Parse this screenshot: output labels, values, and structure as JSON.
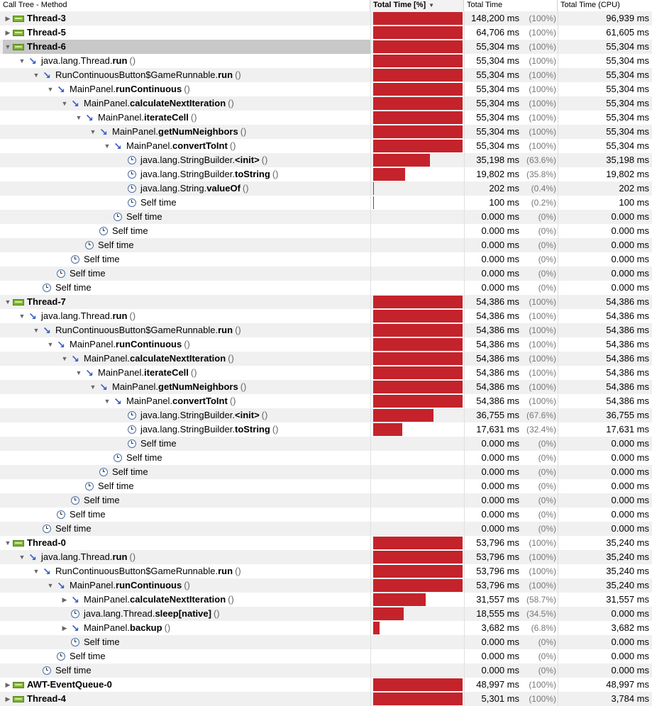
{
  "header": {
    "col_tree": "Call Tree - Method",
    "col_pct": "Total Time [%]",
    "col_time": "Total Time",
    "col_cpu": "Total Time (CPU)"
  },
  "colors": {
    "bar": "#c4232b",
    "thread_icon": "#7fb436",
    "method_icon": "#3a5cc4"
  },
  "rows": [
    {
      "depth": 0,
      "type": "thread",
      "toggle": "collapsed",
      "pre": "",
      "bold": "Thread-3",
      "params": "",
      "time": "148,200 ms",
      "pct_label": "(100%)",
      "pct": 100,
      "cpu": "96,939 ms"
    },
    {
      "depth": 0,
      "type": "thread",
      "toggle": "collapsed",
      "pre": "",
      "bold": "Thread-5",
      "params": "",
      "time": "64,706 ms",
      "pct_label": "(100%)",
      "pct": 100,
      "cpu": "61,605 ms"
    },
    {
      "depth": 0,
      "type": "thread",
      "toggle": "expanded",
      "pre": "",
      "bold": "Thread-6",
      "params": "",
      "time": "55,304 ms",
      "pct_label": "(100%)",
      "pct": 100,
      "cpu": "55,304 ms",
      "selected": true
    },
    {
      "depth": 1,
      "type": "method",
      "toggle": "expanded",
      "pre": "java.lang.Thread.",
      "bold": "run",
      "params": "()",
      "time": "55,304 ms",
      "pct_label": "(100%)",
      "pct": 100,
      "cpu": "55,304 ms"
    },
    {
      "depth": 2,
      "type": "method",
      "toggle": "expanded",
      "pre": "RunContinuousButton$GameRunnable.",
      "bold": "run",
      "params": "()",
      "time": "55,304 ms",
      "pct_label": "(100%)",
      "pct": 100,
      "cpu": "55,304 ms"
    },
    {
      "depth": 3,
      "type": "method",
      "toggle": "expanded",
      "pre": "MainPanel.",
      "bold": "runContinuous",
      "params": "()",
      "time": "55,304 ms",
      "pct_label": "(100%)",
      "pct": 100,
      "cpu": "55,304 ms"
    },
    {
      "depth": 4,
      "type": "method",
      "toggle": "expanded",
      "pre": "MainPanel.",
      "bold": "calculateNextIteration",
      "params": "()",
      "time": "55,304 ms",
      "pct_label": "(100%)",
      "pct": 100,
      "cpu": "55,304 ms"
    },
    {
      "depth": 5,
      "type": "method",
      "toggle": "expanded",
      "pre": "MainPanel.",
      "bold": "iterateCell",
      "params": "()",
      "time": "55,304 ms",
      "pct_label": "(100%)",
      "pct": 100,
      "cpu": "55,304 ms"
    },
    {
      "depth": 6,
      "type": "method",
      "toggle": "expanded",
      "pre": "MainPanel.",
      "bold": "getNumNeighbors",
      "params": "()",
      "time": "55,304 ms",
      "pct_label": "(100%)",
      "pct": 100,
      "cpu": "55,304 ms"
    },
    {
      "depth": 7,
      "type": "method",
      "toggle": "expanded",
      "pre": "MainPanel.",
      "bold": "convertToInt",
      "params": "()",
      "time": "55,304 ms",
      "pct_label": "(100%)",
      "pct": 100,
      "cpu": "55,304 ms"
    },
    {
      "depth": 8,
      "type": "leaf",
      "toggle": "",
      "pre": "java.lang.StringBuilder.",
      "bold": "<init>",
      "params": "()",
      "time": "35,198 ms",
      "pct_label": "(63.6%)",
      "pct": 63.6,
      "cpu": "35,198 ms"
    },
    {
      "depth": 8,
      "type": "leaf",
      "toggle": "",
      "pre": "java.lang.StringBuilder.",
      "bold": "toString",
      "params": "()",
      "time": "19,802 ms",
      "pct_label": "(35.8%)",
      "pct": 35.8,
      "cpu": "19,802 ms"
    },
    {
      "depth": 8,
      "type": "leaf",
      "toggle": "",
      "pre": "java.lang.String.",
      "bold": "valueOf",
      "params": "()",
      "time": "202 ms",
      "pct_label": "(0.4%)",
      "pct": 0.4,
      "cpu": "202 ms"
    },
    {
      "depth": 8,
      "type": "self",
      "toggle": "",
      "pre": "Self time",
      "bold": "",
      "params": "",
      "time": "100 ms",
      "pct_label": "(0.2%)",
      "pct": 0.2,
      "cpu": "100 ms"
    },
    {
      "depth": 7,
      "type": "self",
      "toggle": "",
      "pre": "Self time",
      "bold": "",
      "params": "",
      "time": "0.000 ms",
      "pct_label": "(0%)",
      "pct": 0,
      "cpu": "0.000 ms"
    },
    {
      "depth": 6,
      "type": "self",
      "toggle": "",
      "pre": "Self time",
      "bold": "",
      "params": "",
      "time": "0.000 ms",
      "pct_label": "(0%)",
      "pct": 0,
      "cpu": "0.000 ms"
    },
    {
      "depth": 5,
      "type": "self",
      "toggle": "",
      "pre": "Self time",
      "bold": "",
      "params": "",
      "time": "0.000 ms",
      "pct_label": "(0%)",
      "pct": 0,
      "cpu": "0.000 ms"
    },
    {
      "depth": 4,
      "type": "self",
      "toggle": "",
      "pre": "Self time",
      "bold": "",
      "params": "",
      "time": "0.000 ms",
      "pct_label": "(0%)",
      "pct": 0,
      "cpu": "0.000 ms"
    },
    {
      "depth": 3,
      "type": "self",
      "toggle": "",
      "pre": "Self time",
      "bold": "",
      "params": "",
      "time": "0.000 ms",
      "pct_label": "(0%)",
      "pct": 0,
      "cpu": "0.000 ms"
    },
    {
      "depth": 2,
      "type": "self",
      "toggle": "",
      "pre": "Self time",
      "bold": "",
      "params": "",
      "time": "0.000 ms",
      "pct_label": "(0%)",
      "pct": 0,
      "cpu": "0.000 ms"
    },
    {
      "depth": 0,
      "type": "thread",
      "toggle": "expanded",
      "pre": "",
      "bold": "Thread-7",
      "params": "",
      "time": "54,386 ms",
      "pct_label": "(100%)",
      "pct": 100,
      "cpu": "54,386 ms"
    },
    {
      "depth": 1,
      "type": "method",
      "toggle": "expanded",
      "pre": "java.lang.Thread.",
      "bold": "run",
      "params": "()",
      "time": "54,386 ms",
      "pct_label": "(100%)",
      "pct": 100,
      "cpu": "54,386 ms"
    },
    {
      "depth": 2,
      "type": "method",
      "toggle": "expanded",
      "pre": "RunContinuousButton$GameRunnable.",
      "bold": "run",
      "params": "()",
      "time": "54,386 ms",
      "pct_label": "(100%)",
      "pct": 100,
      "cpu": "54,386 ms"
    },
    {
      "depth": 3,
      "type": "method",
      "toggle": "expanded",
      "pre": "MainPanel.",
      "bold": "runContinuous",
      "params": "()",
      "time": "54,386 ms",
      "pct_label": "(100%)",
      "pct": 100,
      "cpu": "54,386 ms"
    },
    {
      "depth": 4,
      "type": "method",
      "toggle": "expanded",
      "pre": "MainPanel.",
      "bold": "calculateNextIteration",
      "params": "()",
      "time": "54,386 ms",
      "pct_label": "(100%)",
      "pct": 100,
      "cpu": "54,386 ms"
    },
    {
      "depth": 5,
      "type": "method",
      "toggle": "expanded",
      "pre": "MainPanel.",
      "bold": "iterateCell",
      "params": "()",
      "time": "54,386 ms",
      "pct_label": "(100%)",
      "pct": 100,
      "cpu": "54,386 ms"
    },
    {
      "depth": 6,
      "type": "method",
      "toggle": "expanded",
      "pre": "MainPanel.",
      "bold": "getNumNeighbors",
      "params": "()",
      "time": "54,386 ms",
      "pct_label": "(100%)",
      "pct": 100,
      "cpu": "54,386 ms"
    },
    {
      "depth": 7,
      "type": "method",
      "toggle": "expanded",
      "pre": "MainPanel.",
      "bold": "convertToInt",
      "params": "()",
      "time": "54,386 ms",
      "pct_label": "(100%)",
      "pct": 100,
      "cpu": "54,386 ms"
    },
    {
      "depth": 8,
      "type": "leaf",
      "toggle": "",
      "pre": "java.lang.StringBuilder.",
      "bold": "<init>",
      "params": "()",
      "time": "36,755 ms",
      "pct_label": "(67.6%)",
      "pct": 67.6,
      "cpu": "36,755 ms"
    },
    {
      "depth": 8,
      "type": "leaf",
      "toggle": "",
      "pre": "java.lang.StringBuilder.",
      "bold": "toString",
      "params": "()",
      "time": "17,631 ms",
      "pct_label": "(32.4%)",
      "pct": 32.4,
      "cpu": "17,631 ms"
    },
    {
      "depth": 8,
      "type": "self",
      "toggle": "",
      "pre": "Self time",
      "bold": "",
      "params": "",
      "time": "0.000 ms",
      "pct_label": "(0%)",
      "pct": 0,
      "cpu": "0.000 ms"
    },
    {
      "depth": 7,
      "type": "self",
      "toggle": "",
      "pre": "Self time",
      "bold": "",
      "params": "",
      "time": "0.000 ms",
      "pct_label": "(0%)",
      "pct": 0,
      "cpu": "0.000 ms"
    },
    {
      "depth": 6,
      "type": "self",
      "toggle": "",
      "pre": "Self time",
      "bold": "",
      "params": "",
      "time": "0.000 ms",
      "pct_label": "(0%)",
      "pct": 0,
      "cpu": "0.000 ms"
    },
    {
      "depth": 5,
      "type": "self",
      "toggle": "",
      "pre": "Self time",
      "bold": "",
      "params": "",
      "time": "0.000 ms",
      "pct_label": "(0%)",
      "pct": 0,
      "cpu": "0.000 ms"
    },
    {
      "depth": 4,
      "type": "self",
      "toggle": "",
      "pre": "Self time",
      "bold": "",
      "params": "",
      "time": "0.000 ms",
      "pct_label": "(0%)",
      "pct": 0,
      "cpu": "0.000 ms"
    },
    {
      "depth": 3,
      "type": "self",
      "toggle": "",
      "pre": "Self time",
      "bold": "",
      "params": "",
      "time": "0.000 ms",
      "pct_label": "(0%)",
      "pct": 0,
      "cpu": "0.000 ms"
    },
    {
      "depth": 2,
      "type": "self",
      "toggle": "",
      "pre": "Self time",
      "bold": "",
      "params": "",
      "time": "0.000 ms",
      "pct_label": "(0%)",
      "pct": 0,
      "cpu": "0.000 ms"
    },
    {
      "depth": 0,
      "type": "thread",
      "toggle": "expanded",
      "pre": "",
      "bold": "Thread-0",
      "params": "",
      "time": "53,796 ms",
      "pct_label": "(100%)",
      "pct": 100,
      "cpu": "35,240 ms"
    },
    {
      "depth": 1,
      "type": "method",
      "toggle": "expanded",
      "pre": "java.lang.Thread.",
      "bold": "run",
      "params": "()",
      "time": "53,796 ms",
      "pct_label": "(100%)",
      "pct": 100,
      "cpu": "35,240 ms"
    },
    {
      "depth": 2,
      "type": "method",
      "toggle": "expanded",
      "pre": "RunContinuousButton$GameRunnable.",
      "bold": "run",
      "params": "()",
      "time": "53,796 ms",
      "pct_label": "(100%)",
      "pct": 100,
      "cpu": "35,240 ms"
    },
    {
      "depth": 3,
      "type": "method",
      "toggle": "expanded",
      "pre": "MainPanel.",
      "bold": "runContinuous",
      "params": "()",
      "time": "53,796 ms",
      "pct_label": "(100%)",
      "pct": 100,
      "cpu": "35,240 ms"
    },
    {
      "depth": 4,
      "type": "method",
      "toggle": "collapsed",
      "pre": "MainPanel.",
      "bold": "calculateNextIteration",
      "params": "()",
      "time": "31,557 ms",
      "pct_label": "(58.7%)",
      "pct": 58.7,
      "cpu": "31,557 ms"
    },
    {
      "depth": 4,
      "type": "leaf",
      "toggle": "",
      "pre": "java.lang.Thread.",
      "bold": "sleep[native]",
      "params": "()",
      "time": "18,555 ms",
      "pct_label": "(34.5%)",
      "pct": 34.5,
      "cpu": "0.000 ms"
    },
    {
      "depth": 4,
      "type": "method",
      "toggle": "collapsed",
      "pre": "MainPanel.",
      "bold": "backup",
      "params": "()",
      "time": "3,682 ms",
      "pct_label": "(6.8%)",
      "pct": 6.8,
      "cpu": "3,682 ms"
    },
    {
      "depth": 4,
      "type": "self",
      "toggle": "",
      "pre": "Self time",
      "bold": "",
      "params": "",
      "time": "0.000 ms",
      "pct_label": "(0%)",
      "pct": 0,
      "cpu": "0.000 ms"
    },
    {
      "depth": 3,
      "type": "self",
      "toggle": "",
      "pre": "Self time",
      "bold": "",
      "params": "",
      "time": "0.000 ms",
      "pct_label": "(0%)",
      "pct": 0,
      "cpu": "0.000 ms"
    },
    {
      "depth": 2,
      "type": "self",
      "toggle": "",
      "pre": "Self time",
      "bold": "",
      "params": "",
      "time": "0.000 ms",
      "pct_label": "(0%)",
      "pct": 0,
      "cpu": "0.000 ms"
    },
    {
      "depth": 0,
      "type": "thread",
      "toggle": "collapsed",
      "pre": "",
      "bold": "AWT-EventQueue-0",
      "params": "",
      "time": "48,997 ms",
      "pct_label": "(100%)",
      "pct": 100,
      "cpu": "48,997 ms"
    },
    {
      "depth": 0,
      "type": "thread",
      "toggle": "collapsed",
      "pre": "",
      "bold": "Thread-4",
      "params": "",
      "time": "5,301 ms",
      "pct_label": "(100%)",
      "pct": 100,
      "cpu": "3,784 ms"
    }
  ]
}
